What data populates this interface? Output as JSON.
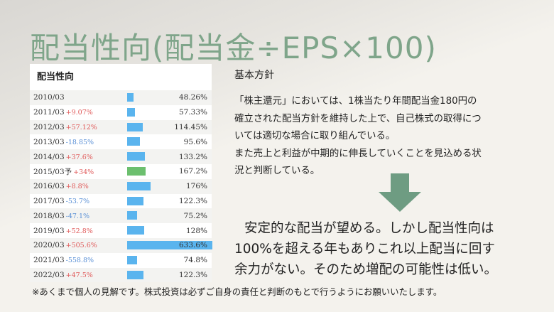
{
  "slide": {
    "title": "配当性向(配当金÷EPS×100)",
    "title_color": "#7fa58a"
  },
  "table": {
    "title": "配当性向",
    "bar_color": "#5ab4ee",
    "bar_highlight_color": "#6cbf6e",
    "rows": [
      {
        "year": "2010/03",
        "change": "",
        "value": "48.26%",
        "ratio": 48.26
      },
      {
        "year": "2011/03",
        "change": "+9.07%",
        "value": "57.33%",
        "ratio": 57.33
      },
      {
        "year": "2012/03",
        "change": "+57.12%",
        "value": "114.45%",
        "ratio": 114.45
      },
      {
        "year": "2013/03",
        "change": "-18.85%",
        "value": "95.6%",
        "ratio": 95.6
      },
      {
        "year": "2014/03",
        "change": "+37.6%",
        "value": "133.2%",
        "ratio": 133.2
      },
      {
        "year": "2015/03予",
        "change": "+34%",
        "value": "167.2%",
        "ratio": 167.2,
        "forecast": true
      },
      {
        "year": "2016/03",
        "change": "+8.8%",
        "value": "176%",
        "ratio": 176
      },
      {
        "year": "2017/03",
        "change": "-53.7%",
        "value": "122.3%",
        "ratio": 122.3
      },
      {
        "year": "2018/03",
        "change": "-47.1%",
        "value": "75.2%",
        "ratio": 75.2
      },
      {
        "year": "2019/03",
        "change": "+52.8%",
        "value": "128%",
        "ratio": 128
      },
      {
        "year": "2020/03",
        "change": "+505.6%",
        "value": "633.6%",
        "ratio": 633.6
      },
      {
        "year": "2021/03",
        "change": "-558.8%",
        "value": "74.8%",
        "ratio": 74.8
      },
      {
        "year": "2022/03",
        "change": "+47.5%",
        "value": "122.3%",
        "ratio": 122.3
      }
    ]
  },
  "policy": {
    "heading": "基本方針",
    "line1": "「株主還元」においては、1株当たり年間配当金180円の",
    "line2": "確立された配当方針を維持した上で、自己株式の取得につ",
    "line3": "いては適切な場合に取り組んでいる。",
    "line4": "また売上と利益が中期的に伸長していくことを見込める状",
    "line5": "況と判断している。"
  },
  "arrow": {
    "icon": "down-arrow-icon",
    "color": "#6e9c82"
  },
  "conclusion": {
    "line1": "安定的な配当が望める。しかし配当性向は",
    "line2": "100%を超える年もありこれ以上配当に回す",
    "line3": "余力がない。そのため増配の可能性は低い。"
  },
  "disclaimer": "※あくまで個人の見解です。株式投資は必ずご自身の責任と判断のもとで行うようにお願いいたします。"
}
